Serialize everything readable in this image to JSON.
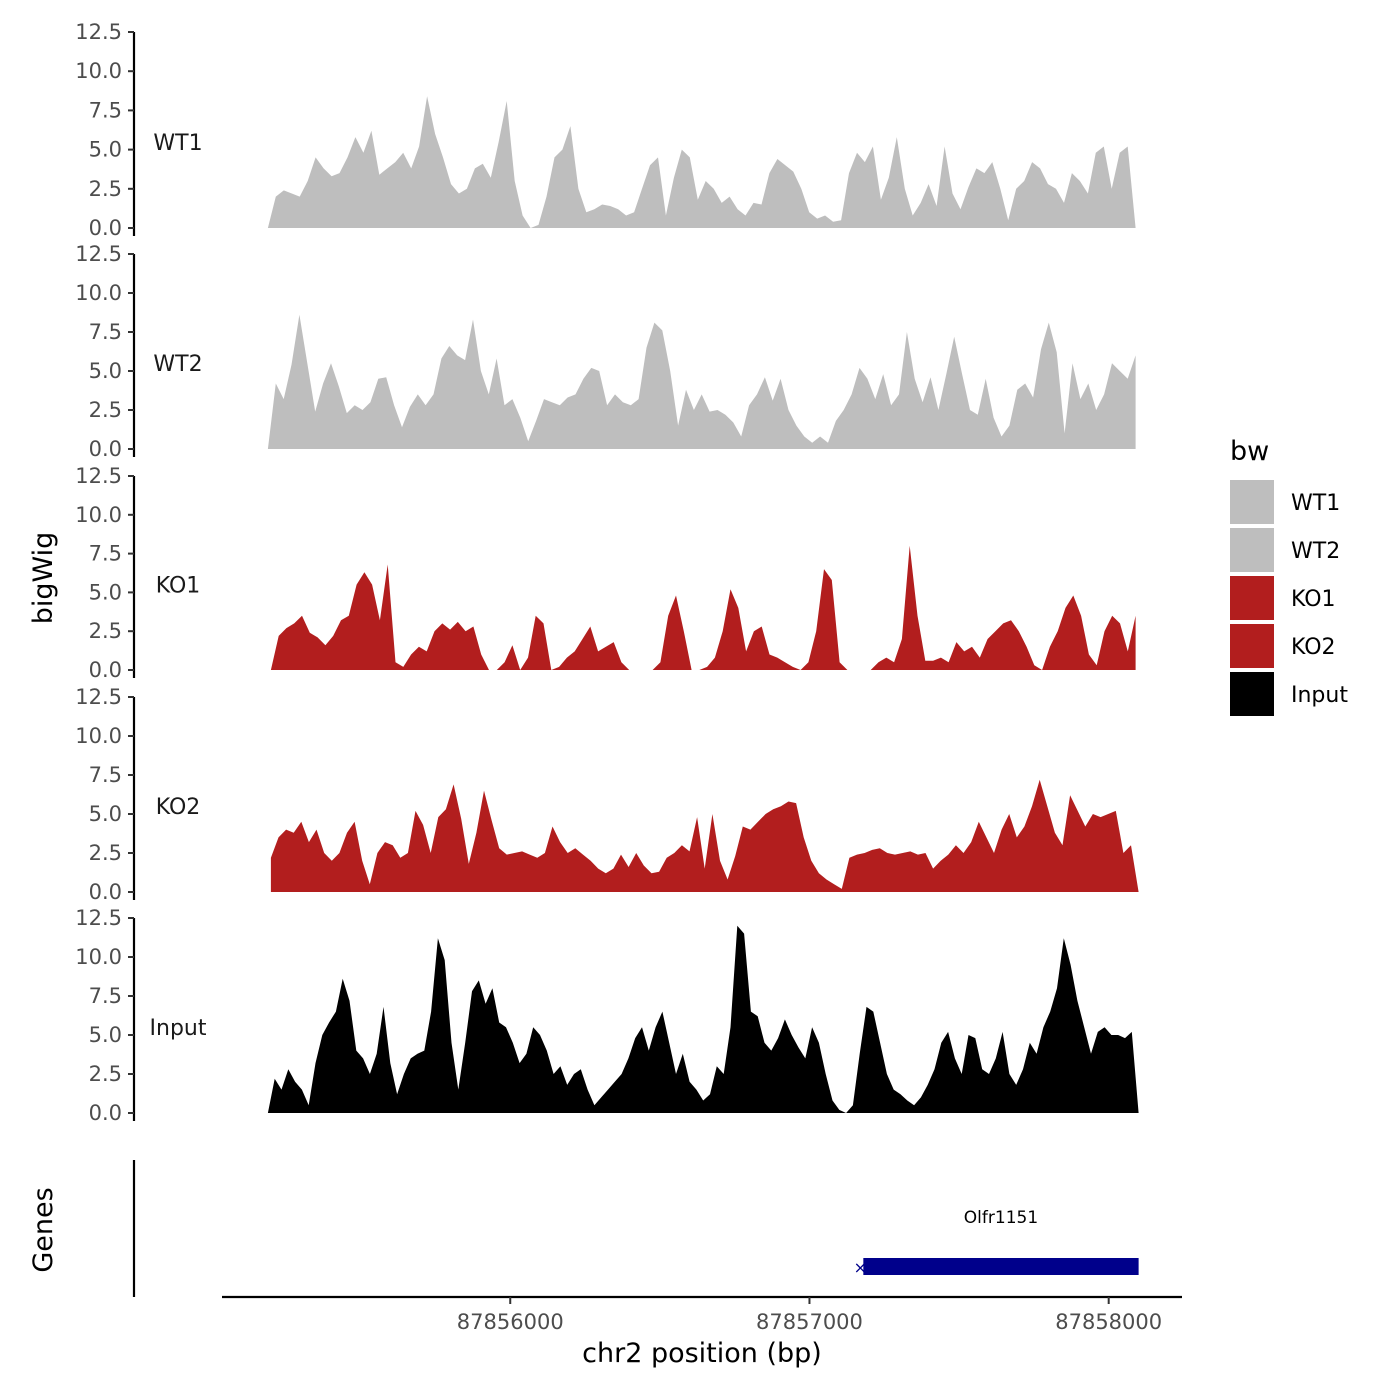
{
  "chart_data": {
    "type": "area",
    "y_axis_title": "bigWig",
    "genes_axis_title": "Genes",
    "xlabel": "chr2 position (bp)",
    "x_ticks": [
      87856000,
      87857000,
      87858000
    ],
    "x_tick_labels": [
      "87856000",
      "87857000",
      "87858000"
    ],
    "xlim": [
      87855030,
      87858245
    ],
    "ylim": [
      0,
      12.5
    ],
    "y_ticks": [
      0,
      2.5,
      5,
      7.5,
      10,
      12.5
    ],
    "y_tick_labels": [
      "0.0",
      "2.5",
      "5.0",
      "7.5",
      "10.0",
      "12.5"
    ],
    "legend": {
      "title": "bw",
      "entries": [
        {
          "label": "WT1",
          "color": "#bebebe"
        },
        {
          "label": "WT2",
          "color": "#bebebe"
        },
        {
          "label": "KO1",
          "color": "#b21e1e"
        },
        {
          "label": "KO2",
          "color": "#b21e1e"
        },
        {
          "label": "Input",
          "color": "#000000"
        }
      ]
    },
    "tracks": [
      {
        "name": "WT1",
        "color": "#bebebe",
        "x_start": 87855190,
        "x_end": 87858090,
        "values": [
          0.0,
          2.0,
          2.4,
          2.2,
          2.0,
          3.0,
          4.5,
          3.8,
          3.3,
          3.5,
          4.5,
          5.8,
          4.8,
          6.2,
          3.4,
          3.8,
          4.2,
          4.8,
          3.8,
          5.2,
          8.4,
          6.0,
          4.5,
          2.8,
          2.2,
          2.5,
          3.8,
          4.1,
          3.2,
          5.5,
          8.1,
          3.0,
          0.8,
          0.0,
          0.2,
          2.0,
          4.5,
          5.0,
          6.5,
          2.5,
          1.0,
          1.2,
          1.5,
          1.4,
          1.2,
          0.8,
          1.0,
          2.5,
          4.0,
          4.5,
          0.8,
          3.2,
          5.0,
          4.5,
          1.8,
          3.0,
          2.5,
          1.6,
          2.0,
          1.2,
          0.8,
          1.6,
          1.5,
          3.5,
          4.4,
          4.0,
          3.6,
          2.5,
          1.0,
          0.6,
          0.8,
          0.4,
          0.5,
          3.5,
          4.8,
          4.2,
          5.2,
          1.8,
          3.2,
          5.8,
          2.5,
          0.8,
          1.6,
          2.8,
          1.4,
          5.2,
          2.2,
          1.2,
          2.6,
          3.8,
          3.5,
          4.2,
          2.5,
          0.5,
          2.5,
          3.0,
          4.2,
          3.8,
          2.8,
          2.5,
          1.6,
          3.5,
          3.0,
          2.2,
          4.8,
          5.2,
          2.5,
          4.8,
          5.2,
          0.0
        ]
      },
      {
        "name": "WT2",
        "color": "#bebebe",
        "x_start": 87855190,
        "x_end": 87858090,
        "values": [
          0.0,
          4.2,
          3.2,
          5.4,
          8.6,
          5.5,
          2.4,
          4.2,
          5.5,
          4.0,
          2.3,
          2.8,
          2.5,
          3.0,
          4.5,
          4.6,
          2.8,
          1.4,
          2.7,
          3.5,
          2.8,
          3.5,
          5.8,
          6.6,
          6.0,
          5.7,
          8.3,
          5.0,
          3.5,
          5.8,
          2.8,
          3.2,
          2.0,
          0.5,
          1.8,
          3.2,
          3.0,
          2.8,
          3.3,
          3.5,
          4.5,
          5.2,
          5.0,
          2.8,
          3.5,
          3.0,
          2.8,
          3.2,
          6.5,
          8.1,
          7.6,
          5.0,
          1.5,
          3.8,
          2.5,
          3.5,
          2.4,
          2.5,
          2.2,
          1.7,
          0.8,
          2.8,
          3.5,
          4.6,
          3.1,
          4.5,
          2.5,
          1.5,
          0.8,
          0.4,
          0.8,
          0.4,
          1.8,
          2.5,
          3.5,
          5.2,
          4.5,
          3.2,
          4.8,
          2.8,
          3.5,
          7.5,
          4.5,
          3.0,
          4.6,
          2.5,
          4.8,
          7.2,
          4.8,
          2.5,
          2.2,
          4.5,
          2.0,
          0.8,
          1.5,
          3.8,
          4.2,
          3.3,
          6.4,
          8.1,
          6.2,
          1.0,
          5.5,
          3.2,
          4.2,
          2.5,
          3.5,
          5.5,
          5.0,
          4.5,
          6.0
        ]
      },
      {
        "name": "KO1",
        "color": "#b21e1e",
        "x_start": 87855200,
        "x_end": 87858090,
        "values": [
          0.0,
          2.2,
          2.7,
          3.0,
          3.5,
          2.4,
          2.1,
          1.6,
          2.2,
          3.2,
          3.5,
          5.5,
          6.3,
          5.5,
          3.2,
          6.8,
          0.5,
          0.2,
          1.0,
          1.5,
          1.2,
          2.5,
          3.0,
          2.6,
          3.1,
          2.5,
          2.8,
          1.0,
          0.0,
          0.0,
          0.5,
          1.6,
          0.0,
          0.8,
          3.5,
          3.0,
          0.0,
          0.2,
          0.8,
          1.2,
          2.0,
          2.8,
          1.2,
          1.5,
          1.8,
          0.5,
          0.0,
          0.0,
          0.0,
          0.0,
          0.5,
          3.5,
          4.8,
          2.5,
          0.0,
          0.0,
          0.2,
          0.8,
          2.5,
          5.2,
          4.0,
          1.2,
          2.5,
          2.8,
          1.0,
          0.8,
          0.5,
          0.2,
          0.0,
          0.5,
          2.5,
          6.5,
          5.8,
          0.5,
          0.0,
          0.0,
          0.0,
          0.0,
          0.5,
          0.8,
          0.5,
          2.0,
          8.0,
          3.5,
          0.6,
          0.6,
          0.8,
          0.5,
          1.8,
          1.2,
          1.5,
          0.8,
          2.0,
          2.5,
          3.0,
          3.2,
          2.5,
          1.5,
          0.3,
          0.0,
          1.5,
          2.5,
          4.0,
          4.8,
          3.5,
          1.0,
          0.3,
          2.5,
          3.5,
          3.0,
          1.2,
          3.5
        ]
      },
      {
        "name": "KO2",
        "color": "#b21e1e",
        "x_start": 87855200,
        "x_end": 87858100,
        "values": [
          2.2,
          3.5,
          4.0,
          3.8,
          4.5,
          3.2,
          4.0,
          2.5,
          2.0,
          2.5,
          3.8,
          4.5,
          2.0,
          0.5,
          2.5,
          3.2,
          3.0,
          2.2,
          2.5,
          5.2,
          4.3,
          2.5,
          4.8,
          5.3,
          6.9,
          4.7,
          1.8,
          3.8,
          6.5,
          4.6,
          2.8,
          2.4,
          2.5,
          2.6,
          2.4,
          2.2,
          2.5,
          4.2,
          3.2,
          2.5,
          2.8,
          2.4,
          2.0,
          1.5,
          1.2,
          1.5,
          2.4,
          1.6,
          2.5,
          1.7,
          1.2,
          1.3,
          2.2,
          2.5,
          3.0,
          2.6,
          4.8,
          1.5,
          5.0,
          2.0,
          0.8,
          2.3,
          4.2,
          4.0,
          4.5,
          5.0,
          5.3,
          5.5,
          5.8,
          5.7,
          3.5,
          2.0,
          1.2,
          0.8,
          0.5,
          0.2,
          2.2,
          2.4,
          2.5,
          2.7,
          2.8,
          2.5,
          2.4,
          2.5,
          2.6,
          2.4,
          2.5,
          1.5,
          2.0,
          2.4,
          3.0,
          2.5,
          3.2,
          4.5,
          3.5,
          2.5,
          4.0,
          5.0,
          3.5,
          4.2,
          5.5,
          7.2,
          5.5,
          3.8,
          3.0,
          6.2,
          5.2,
          4.2,
          5.0,
          4.8,
          5.0,
          5.2,
          2.5,
          3.0,
          0.0
        ]
      },
      {
        "name": "Input",
        "color": "#000000",
        "x_start": 87855190,
        "x_end": 87858100,
        "values": [
          0.0,
          2.2,
          1.5,
          2.8,
          2.0,
          1.5,
          0.5,
          3.2,
          5.0,
          5.8,
          6.5,
          8.6,
          7.2,
          4.0,
          3.5,
          2.5,
          3.8,
          6.8,
          3.2,
          1.2,
          2.5,
          3.5,
          3.8,
          4.0,
          6.5,
          11.2,
          9.8,
          4.5,
          1.5,
          4.5,
          7.8,
          8.5,
          7.0,
          8.0,
          5.8,
          5.5,
          4.5,
          3.2,
          3.8,
          5.5,
          5.0,
          4.0,
          2.5,
          3.0,
          1.8,
          2.5,
          2.8,
          1.5,
          0.5,
          1.0,
          1.5,
          2.0,
          2.5,
          3.5,
          4.8,
          5.5,
          4.0,
          5.5,
          6.5,
          4.5,
          2.5,
          3.8,
          2.0,
          1.5,
          0.8,
          1.2,
          3.0,
          2.5,
          5.5,
          12.0,
          11.5,
          6.5,
          6.2,
          4.5,
          4.0,
          4.8,
          6.0,
          5.0,
          4.2,
          3.5,
          5.5,
          4.5,
          2.5,
          0.8,
          0.2,
          0.0,
          0.5,
          3.8,
          6.8,
          6.5,
          4.5,
          2.5,
          1.5,
          1.2,
          0.8,
          0.5,
          1.0,
          1.8,
          2.8,
          4.5,
          5.2,
          3.5,
          2.5,
          5.0,
          4.8,
          2.8,
          2.5,
          3.5,
          5.2,
          2.5,
          1.8,
          2.8,
          4.5,
          3.8,
          5.5,
          6.5,
          8.0,
          11.2,
          9.5,
          7.2,
          5.5,
          3.8,
          5.2,
          5.5,
          5.0,
          5.0,
          4.8,
          5.2,
          0.0
        ]
      }
    ],
    "genes": [
      {
        "name": "Olfr1151",
        "start": 87857180,
        "end": 87858100,
        "color": "#00008b"
      }
    ]
  }
}
